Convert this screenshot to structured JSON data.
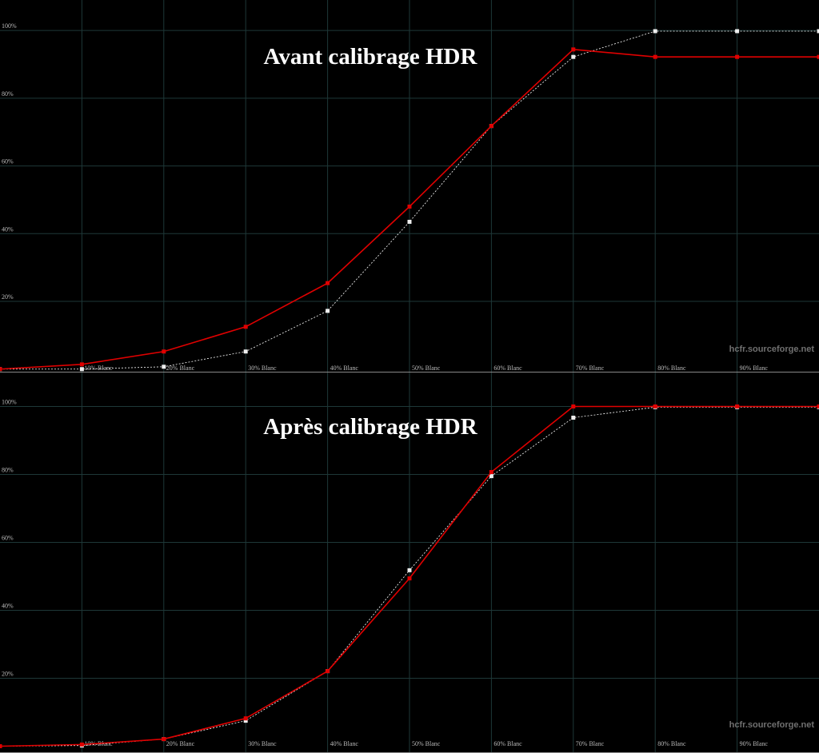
{
  "chart_data": [
    {
      "type": "line",
      "title": "Avant calibrage HDR",
      "annotation": "hcfr.sourceforge.net",
      "x": [
        0,
        10,
        20,
        30,
        40,
        50,
        60,
        70,
        80,
        90,
        100
      ],
      "series": [
        {
          "color": "#e00000",
          "style": "solid",
          "values": [
            0,
            1.4,
            5.2,
            12.5,
            25.4,
            48,
            71.8,
            94.4,
            92.2,
            92.2,
            92.2
          ]
        },
        {
          "color": "#ffffff",
          "style": "dashed",
          "values": [
            0,
            0,
            0.7,
            5.2,
            17.2,
            43.5,
            71.8,
            92.2,
            99.8,
            99.8,
            99.8
          ]
        }
      ],
      "xlim": [
        0,
        100
      ],
      "xticks": [
        {
          "value": 10,
          "label": "10% Blanc"
        },
        {
          "value": 20,
          "label": "20% Blanc"
        },
        {
          "value": 30,
          "label": "30% Blanc"
        },
        {
          "value": 40,
          "label": "40% Blanc"
        },
        {
          "value": 50,
          "label": "50% Blanc"
        },
        {
          "value": 60,
          "label": "60% Blanc"
        },
        {
          "value": 70,
          "label": "70% Blanc"
        },
        {
          "value": 80,
          "label": "80% Blanc"
        },
        {
          "value": 90,
          "label": "90% Blanc"
        }
      ],
      "ylim": [
        -1,
        109
      ],
      "yticks": [
        {
          "value": 20,
          "label": "20%"
        },
        {
          "value": 40,
          "label": "40%"
        },
        {
          "value": 60,
          "label": "60%"
        },
        {
          "value": 80,
          "label": "80%"
        },
        {
          "value": 100,
          "label": "100%"
        }
      ],
      "grid": true,
      "grid_color": "#1e3838"
    },
    {
      "type": "line",
      "title": "Après calibrage HDR",
      "annotation": "hcfr.sourceforge.net",
      "x": [
        0,
        10,
        20,
        30,
        40,
        50,
        60,
        70,
        80,
        90,
        100
      ],
      "series": [
        {
          "color": "#e00000",
          "style": "solid",
          "values": [
            0,
            0.5,
            2.1,
            8.2,
            22.1,
            49.4,
            80.7,
            100,
            100,
            100,
            100
          ]
        },
        {
          "color": "#ffffff",
          "style": "dashed",
          "values": [
            0,
            0.2,
            2.1,
            7.5,
            22.1,
            51.8,
            79.5,
            96.7,
            99.8,
            99.8,
            99.8
          ]
        }
      ],
      "xlim": [
        0,
        100
      ],
      "xticks": [
        {
          "value": 10,
          "label": "10% Blanc"
        },
        {
          "value": 20,
          "label": "20% Blanc"
        },
        {
          "value": 30,
          "label": "30% Blanc"
        },
        {
          "value": 40,
          "label": "40% Blanc"
        },
        {
          "value": 50,
          "label": "50% Blanc"
        },
        {
          "value": 60,
          "label": "60% Blanc"
        },
        {
          "value": 70,
          "label": "70% Blanc"
        },
        {
          "value": 80,
          "label": "80% Blanc"
        },
        {
          "value": 90,
          "label": "90% Blanc"
        }
      ],
      "ylim": [
        -2,
        110
      ],
      "yticks": [
        {
          "value": 20,
          "label": "20%"
        },
        {
          "value": 40,
          "label": "40%"
        },
        {
          "value": 60,
          "label": "60%"
        },
        {
          "value": 80,
          "label": "80%"
        },
        {
          "value": 100,
          "label": "100%"
        }
      ],
      "grid": true,
      "grid_color": "#1e3838"
    }
  ]
}
